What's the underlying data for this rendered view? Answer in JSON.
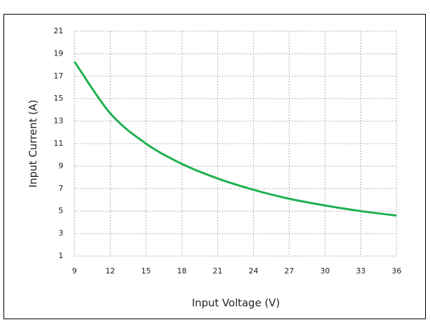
{
  "chart_data": {
    "type": "line",
    "x_label": "Input Voltage (V)",
    "y_label": "Input Current (A)",
    "x": [
      9,
      12,
      15,
      18,
      21,
      24,
      27,
      30,
      33,
      36
    ],
    "series": [
      {
        "color": "#1fb050",
        "values": [
          18.3,
          13.7,
          11,
          9.2,
          7.9,
          6.9,
          6.1,
          5.5,
          5.0,
          4.6
        ]
      }
    ],
    "xlim": [
      9,
      36
    ],
    "xticks": [
      9,
      12,
      15,
      18,
      21,
      24,
      27,
      30,
      33,
      36
    ],
    "ylim": [
      1,
      21
    ],
    "yticks": [
      1,
      3,
      5,
      7,
      9,
      11,
      13,
      15,
      17,
      19,
      21
    ],
    "grid": true
  }
}
